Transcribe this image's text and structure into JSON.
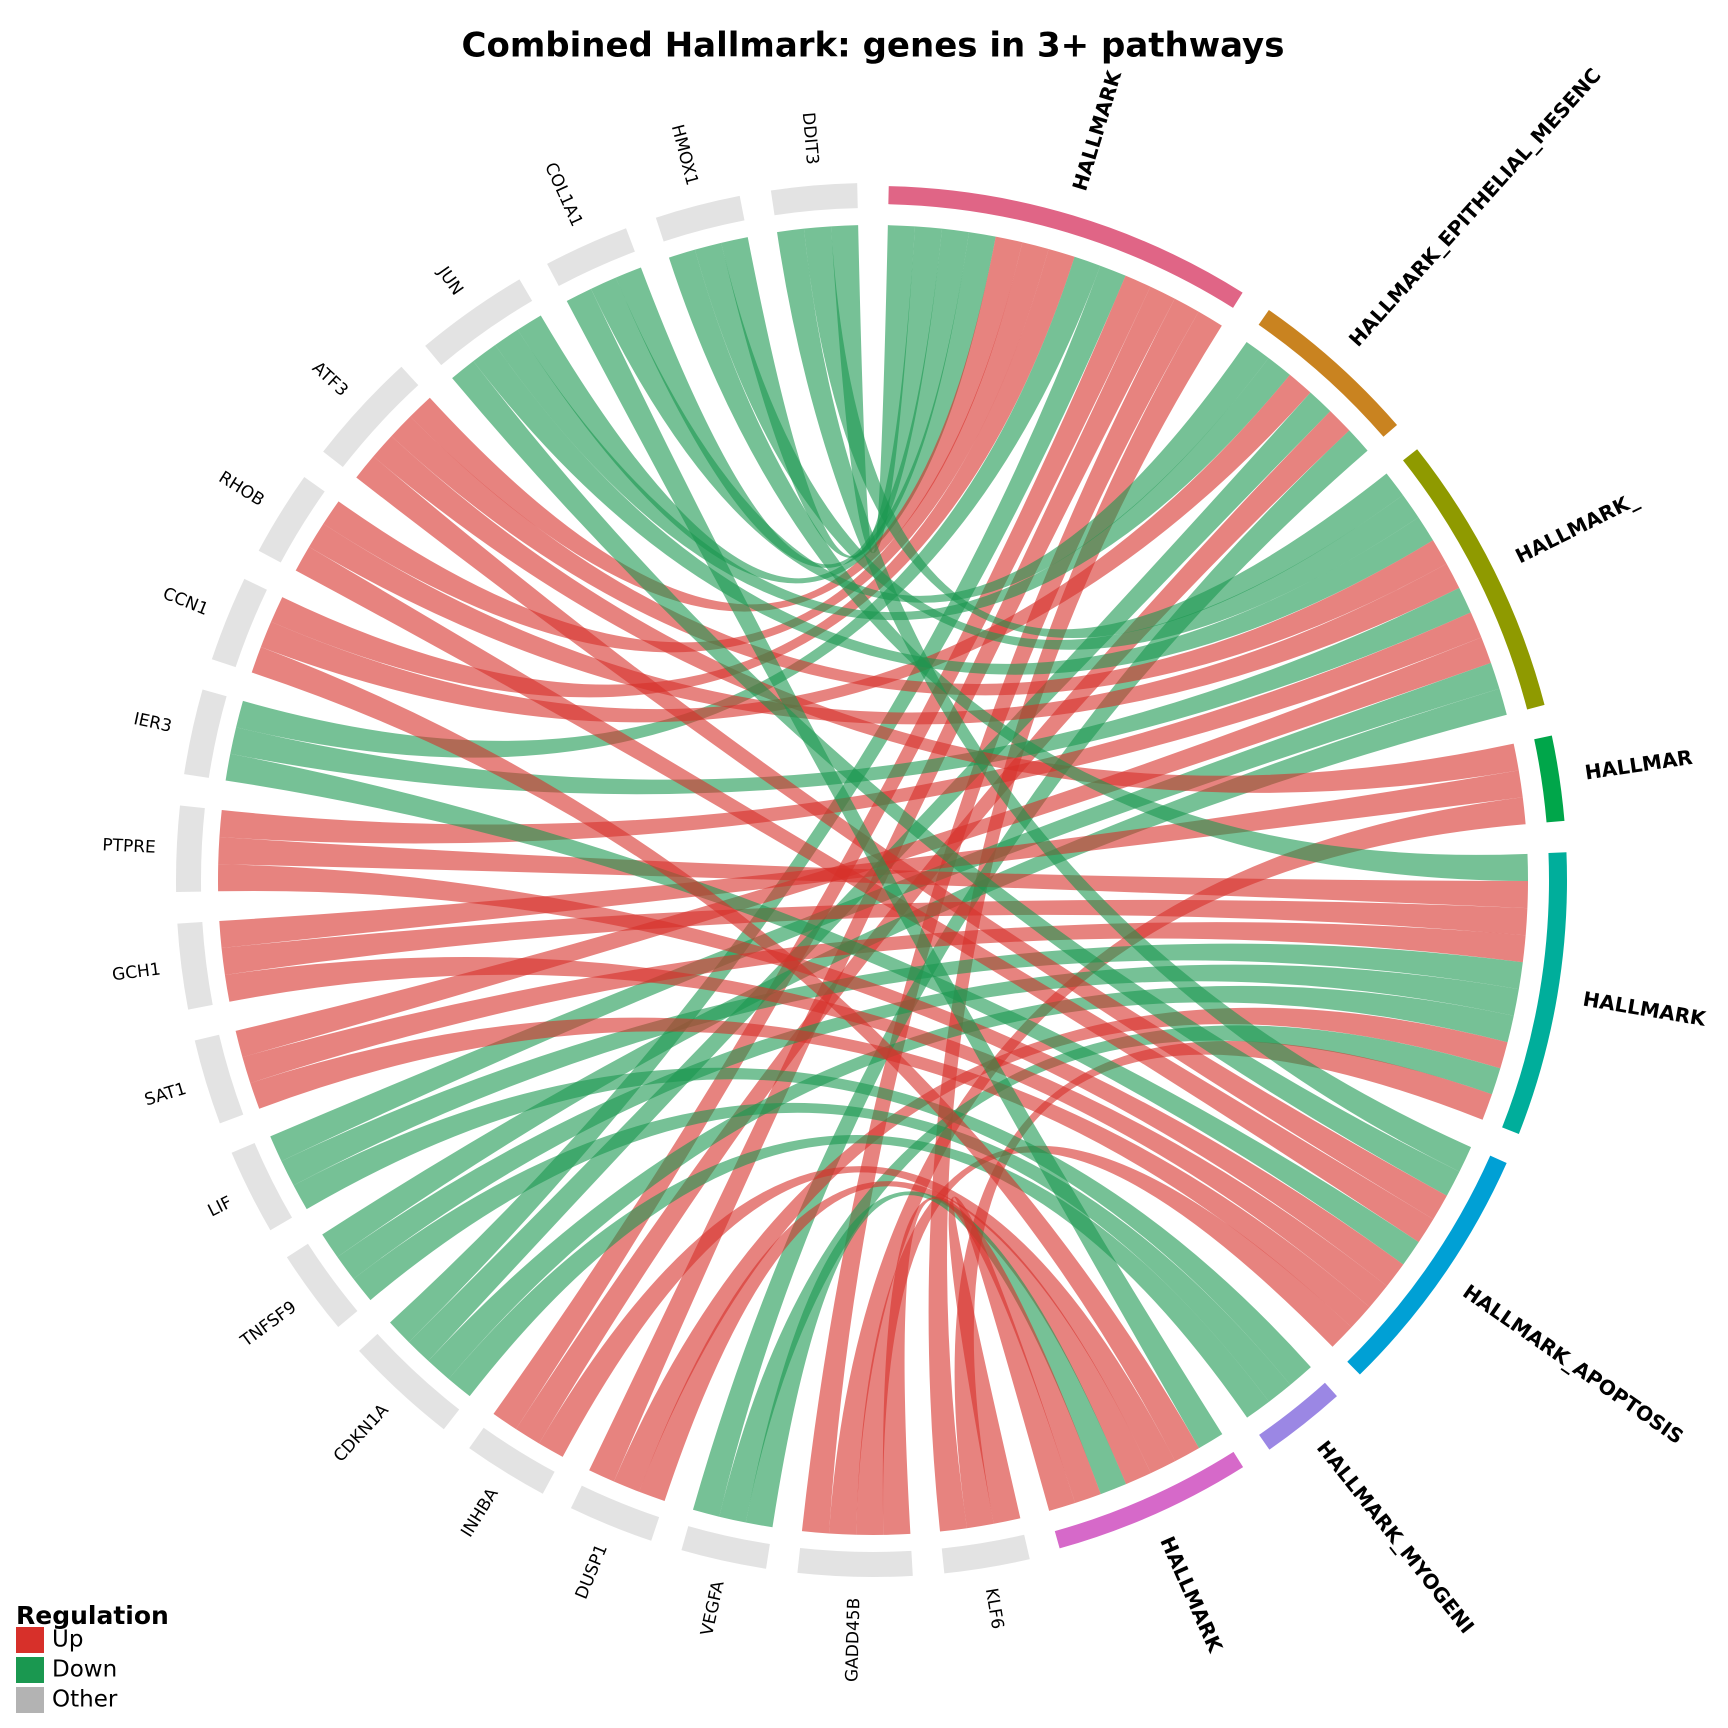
{
  "chart_data": {
    "type": "chord",
    "title": "Combined Hallmark: genes in 3+ pathways",
    "pathways": [
      {
        "name": "HALLMARK",
        "color": "#e06586",
        "genes": [
          "DDIT3",
          "HMOX1",
          "COL1A1",
          "JUN",
          "ATF3",
          "RHOB",
          "CCN1",
          "IER3",
          "CDKN1A",
          "INHBA",
          "DUSP1",
          "GADD45B",
          "KLF6"
        ]
      },
      {
        "name": "HALLMARK_EPITHELIAL_MESENC",
        "color": "#c98320",
        "genes": [
          "COL1A1",
          "JUN",
          "CCN1",
          "CDKN1A",
          "INHBA",
          "VEGFA"
        ]
      },
      {
        "name": "HALLMARK_",
        "color": "#8f9a00",
        "genes": [
          "DDIT3",
          "HMOX1",
          "JUN",
          "ATF3",
          "RHOB",
          "IER3",
          "PTPRE",
          "SAT1",
          "LIF",
          "TNFSF9"
        ]
      },
      {
        "name": "HALLMAR",
        "color": "#00a64a",
        "genes": [
          "ATF3",
          "GCH1",
          "GADD45B"
        ]
      },
      {
        "name": "HALLMARK",
        "color": "#00ae9b",
        "genes": [
          "HMOX1",
          "PTPRE",
          "GCH1",
          "SAT1",
          "LIF",
          "TNFSF9",
          "CDKN1A",
          "DUSP1",
          "VEGFA",
          "KLF6"
        ]
      },
      {
        "name": "HALLMARK_APOPTOSIS",
        "color": "#00a0d5",
        "genes": [
          "DDIT3",
          "JUN",
          "ATF3",
          "RHOB",
          "IER3",
          "PTPRE",
          "GCH1",
          "SAT1",
          "GADD45B"
        ]
      },
      {
        "name": "HALLMARK_MYOGENI",
        "color": "#9b87e4",
        "genes": [
          "LIF",
          "TNFSF9",
          "CDKN1A"
        ]
      },
      {
        "name": "HALLMARK",
        "color": "#d669c9",
        "genes": [
          "COL1A1",
          "CCN1",
          "INHBA",
          "DUSP1",
          "VEGFA",
          "GADD45B",
          "KLF6"
        ]
      }
    ],
    "genes": [
      {
        "name": "DDIT3",
        "regulation": "Down"
      },
      {
        "name": "HMOX1",
        "regulation": "Down"
      },
      {
        "name": "COL1A1",
        "regulation": "Down"
      },
      {
        "name": "JUN",
        "regulation": "Down"
      },
      {
        "name": "ATF3",
        "regulation": "Up"
      },
      {
        "name": "RHOB",
        "regulation": "Up"
      },
      {
        "name": "CCN1",
        "regulation": "Up"
      },
      {
        "name": "IER3",
        "regulation": "Down"
      },
      {
        "name": "PTPRE",
        "regulation": "Up"
      },
      {
        "name": "GCH1",
        "regulation": "Up"
      },
      {
        "name": "SAT1",
        "regulation": "Up"
      },
      {
        "name": "LIF",
        "regulation": "Down"
      },
      {
        "name": "TNFSF9",
        "regulation": "Down"
      },
      {
        "name": "CDKN1A",
        "regulation": "Down"
      },
      {
        "name": "INHBA",
        "regulation": "Up"
      },
      {
        "name": "DUSP1",
        "regulation": "Up"
      },
      {
        "name": "VEGFA",
        "regulation": "Down"
      },
      {
        "name": "GADD45B",
        "regulation": "Up"
      },
      {
        "name": "KLF6",
        "regulation": "Up"
      }
    ],
    "gene_color": "#e3e3e3",
    "legend": {
      "title": "Regulation",
      "items": [
        {
          "label": "Up",
          "color": "#d7302a"
        },
        {
          "label": "Down",
          "color": "#1a9850"
        },
        {
          "label": "Other",
          "color": "#b3b3b3"
        }
      ]
    }
  }
}
